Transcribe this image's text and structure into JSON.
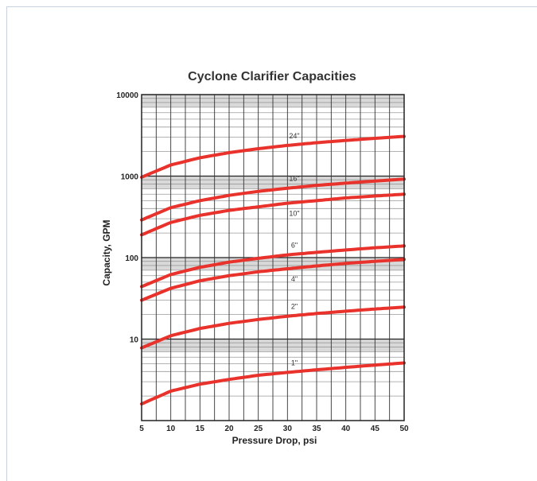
{
  "chart_data": {
    "type": "line",
    "title": "Cyclone Clarifier Capacities",
    "xlabel": "Pressure Drop, psi",
    "ylabel": "Capacity, GPM",
    "xlim": [
      5,
      50
    ],
    "ylim": [
      1,
      10000
    ],
    "y_scale": "log",
    "grid": true,
    "x_ticks": [
      "5",
      "10",
      "15",
      "20",
      "25",
      "30",
      "35",
      "40",
      "45",
      "50"
    ],
    "y_ticks": [
      "10",
      "100",
      "1000",
      "10000"
    ],
    "x": [
      5,
      10,
      15,
      20,
      25,
      30,
      35,
      40,
      45,
      50
    ],
    "series": [
      {
        "name": "24\"",
        "values": [
          970,
          1370,
          1680,
          1940,
          2170,
          2380,
          2570,
          2740,
          2910,
          3070
        ]
      },
      {
        "name": "16\"",
        "values": [
          290,
          410,
          500,
          580,
          650,
          710,
          770,
          820,
          870,
          920
        ]
      },
      {
        "name": "10\"",
        "values": [
          190,
          270,
          330,
          380,
          420,
          465,
          500,
          540,
          570,
          600
        ]
      },
      {
        "name": "6\"",
        "values": [
          44,
          62,
          76,
          88,
          98,
          108,
          116,
          124,
          132,
          139
        ]
      },
      {
        "name": "4\"",
        "values": [
          30,
          42,
          52,
          60,
          67,
          73,
          79,
          85,
          90,
          95
        ]
      },
      {
        "name": "2\"",
        "values": [
          7.8,
          11,
          13.5,
          15.6,
          17.4,
          19.1,
          20.6,
          22,
          23.4,
          24.7
        ]
      },
      {
        "name": "1\"",
        "values": [
          1.6,
          2.3,
          2.8,
          3.2,
          3.6,
          3.9,
          4.2,
          4.5,
          4.8,
          5.1
        ]
      }
    ],
    "series_color": "#e8322b"
  }
}
